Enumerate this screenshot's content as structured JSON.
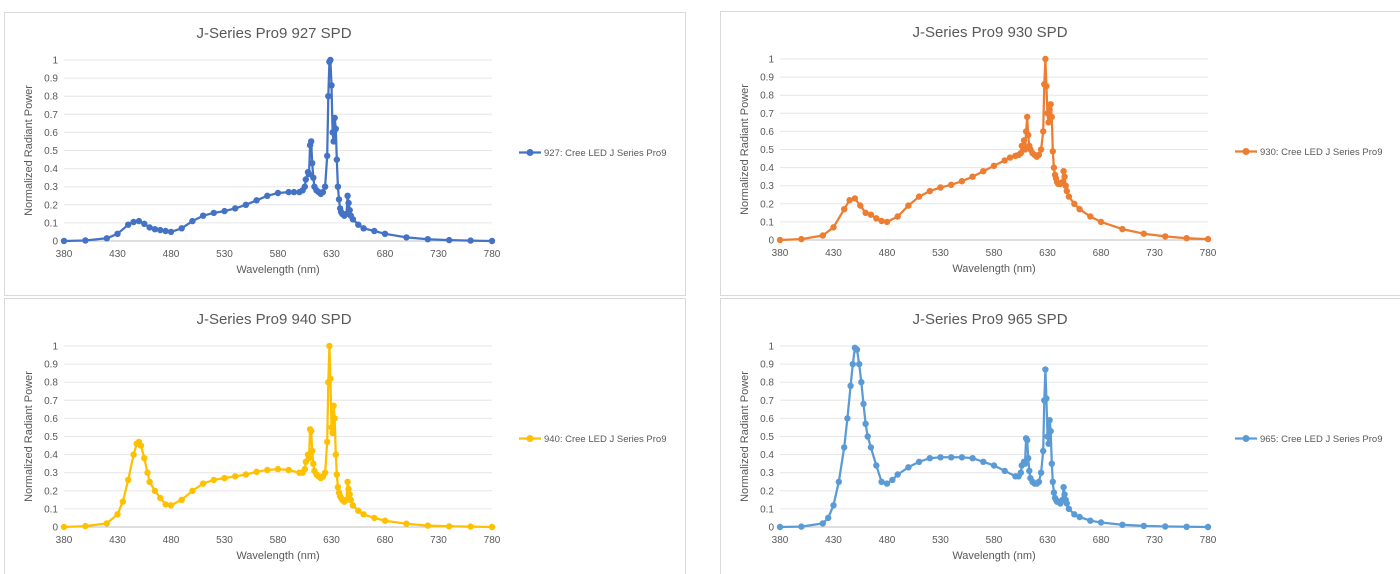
{
  "chart_data": [
    {
      "type": "line",
      "title": "J-Series Pro9 927 SPD",
      "xlabel": "Wavelength (nm)",
      "ylabel": "Normalized Radiant Power",
      "xlim": [
        380,
        780
      ],
      "ylim": [
        0,
        1
      ],
      "xticks": [
        "380",
        "430",
        "480",
        "530",
        "580",
        "630",
        "680",
        "730",
        "780"
      ],
      "yticks": [
        "0",
        "0.1",
        "0.2",
        "0.3",
        "0.4",
        "0.5",
        "0.6",
        "0.7",
        "0.8",
        "0.9",
        "1"
      ],
      "grid": true,
      "legend_position": "right",
      "color": "#4472C4",
      "series": [
        {
          "name": "927: Cree LED J Series Pro9",
          "x": [
            380,
            400,
            420,
            430,
            440,
            445,
            450,
            455,
            460,
            465,
            470,
            475,
            480,
            490,
            500,
            510,
            520,
            530,
            540,
            550,
            560,
            570,
            580,
            590,
            595,
            600,
            603,
            605,
            606,
            608,
            609,
            610,
            611,
            612,
            613,
            614,
            616,
            618,
            620,
            622,
            624,
            626,
            627,
            628,
            629,
            630,
            631,
            632,
            633,
            634,
            635,
            636,
            637,
            638,
            639,
            640,
            642,
            644,
            645,
            646,
            647,
            648,
            650,
            655,
            660,
            670,
            680,
            700,
            720,
            740,
            760,
            780
          ],
          "y": [
            0.0,
            0.003,
            0.015,
            0.04,
            0.09,
            0.105,
            0.11,
            0.095,
            0.075,
            0.065,
            0.06,
            0.055,
            0.05,
            0.07,
            0.11,
            0.14,
            0.155,
            0.165,
            0.18,
            0.2,
            0.225,
            0.25,
            0.265,
            0.27,
            0.27,
            0.27,
            0.28,
            0.3,
            0.34,
            0.38,
            0.37,
            0.53,
            0.55,
            0.43,
            0.35,
            0.3,
            0.28,
            0.27,
            0.26,
            0.27,
            0.3,
            0.47,
            0.8,
            0.99,
            1.0,
            0.86,
            0.6,
            0.55,
            0.68,
            0.62,
            0.45,
            0.3,
            0.23,
            0.18,
            0.16,
            0.15,
            0.14,
            0.15,
            0.25,
            0.21,
            0.17,
            0.14,
            0.12,
            0.09,
            0.07,
            0.055,
            0.04,
            0.02,
            0.01,
            0.005,
            0.002,
            0.0
          ]
        }
      ]
    },
    {
      "type": "line",
      "title": "J-Series Pro9 930 SPD",
      "xlabel": "Wavelength (nm)",
      "ylabel": "Normalized Radiant Power",
      "xlim": [
        380,
        780
      ],
      "ylim": [
        0,
        1
      ],
      "xticks": [
        "380",
        "430",
        "480",
        "530",
        "580",
        "630",
        "680",
        "730",
        "780"
      ],
      "yticks": [
        "0",
        "0.1",
        "0.2",
        "0.3",
        "0.4",
        "0.5",
        "0.6",
        "0.7",
        "0.8",
        "0.9",
        "1"
      ],
      "grid": true,
      "legend_position": "right",
      "color": "#ED7D31",
      "series": [
        {
          "name": "930: Cree LED J Series Pro9",
          "x": [
            380,
            400,
            420,
            430,
            440,
            445,
            450,
            455,
            460,
            465,
            470,
            475,
            480,
            490,
            500,
            510,
            520,
            530,
            540,
            550,
            560,
            570,
            580,
            590,
            595,
            600,
            603,
            605,
            606,
            608,
            609,
            610,
            611,
            612,
            613,
            614,
            616,
            618,
            620,
            622,
            624,
            626,
            627,
            628,
            629,
            630,
            631,
            632,
            633,
            634,
            635,
            636,
            637,
            638,
            639,
            640,
            642,
            644,
            645,
            646,
            647,
            648,
            650,
            655,
            660,
            670,
            680,
            700,
            720,
            740,
            760,
            780
          ],
          "y": [
            0.0,
            0.005,
            0.025,
            0.07,
            0.17,
            0.22,
            0.23,
            0.19,
            0.15,
            0.14,
            0.12,
            0.105,
            0.1,
            0.13,
            0.19,
            0.24,
            0.27,
            0.29,
            0.305,
            0.325,
            0.35,
            0.38,
            0.41,
            0.44,
            0.455,
            0.465,
            0.47,
            0.48,
            0.52,
            0.55,
            0.5,
            0.6,
            0.68,
            0.58,
            0.52,
            0.5,
            0.48,
            0.47,
            0.46,
            0.47,
            0.5,
            0.6,
            0.86,
            1.0,
            0.85,
            0.7,
            0.65,
            0.72,
            0.75,
            0.68,
            0.49,
            0.4,
            0.36,
            0.34,
            0.32,
            0.31,
            0.31,
            0.32,
            0.38,
            0.35,
            0.3,
            0.27,
            0.24,
            0.2,
            0.17,
            0.13,
            0.1,
            0.06,
            0.035,
            0.02,
            0.01,
            0.005
          ]
        }
      ]
    },
    {
      "type": "line",
      "title": "J-Series Pro9 940 SPD",
      "xlabel": "Wavelength (nm)",
      "ylabel": "Normalized Radiant Power",
      "xlim": [
        380,
        780
      ],
      "ylim": [
        0,
        1
      ],
      "xticks": [
        "380",
        "430",
        "480",
        "530",
        "580",
        "630",
        "680",
        "730",
        "780"
      ],
      "yticks": [
        "0",
        "0.1",
        "0.2",
        "0.3",
        "0.4",
        "0.5",
        "0.6",
        "0.7",
        "0.8",
        "0.9",
        "1"
      ],
      "grid": true,
      "legend_position": "right",
      "color": "#FFC000",
      "series": [
        {
          "name": "940: Cree LED J Series Pro9",
          "x": [
            380,
            400,
            420,
            430,
            435,
            440,
            445,
            448,
            450,
            452,
            455,
            458,
            460,
            465,
            470,
            475,
            480,
            490,
            500,
            510,
            520,
            530,
            540,
            550,
            560,
            570,
            580,
            590,
            600,
            603,
            605,
            606,
            608,
            609,
            610,
            611,
            612,
            613,
            614,
            616,
            618,
            620,
            622,
            624,
            626,
            627,
            628,
            629,
            630,
            631,
            632,
            633,
            634,
            635,
            636,
            637,
            638,
            639,
            640,
            642,
            644,
            645,
            646,
            647,
            648,
            650,
            655,
            660,
            670,
            680,
            700,
            720,
            740,
            760,
            780
          ],
          "y": [
            0.0,
            0.005,
            0.02,
            0.07,
            0.14,
            0.26,
            0.4,
            0.46,
            0.47,
            0.45,
            0.38,
            0.3,
            0.25,
            0.2,
            0.16,
            0.125,
            0.12,
            0.15,
            0.2,
            0.24,
            0.26,
            0.27,
            0.28,
            0.29,
            0.305,
            0.315,
            0.32,
            0.315,
            0.3,
            0.3,
            0.32,
            0.36,
            0.4,
            0.38,
            0.54,
            0.53,
            0.42,
            0.35,
            0.31,
            0.29,
            0.28,
            0.27,
            0.28,
            0.3,
            0.47,
            0.8,
            1.0,
            0.82,
            0.55,
            0.52,
            0.67,
            0.6,
            0.4,
            0.29,
            0.22,
            0.19,
            0.17,
            0.16,
            0.15,
            0.14,
            0.15,
            0.25,
            0.21,
            0.18,
            0.15,
            0.12,
            0.09,
            0.07,
            0.05,
            0.035,
            0.018,
            0.008,
            0.004,
            0.002,
            0.0
          ]
        }
      ]
    },
    {
      "type": "line",
      "title": "J-Series Pro9 965 SPD",
      "xlabel": "Wavelength (nm)",
      "ylabel": "Normalized Radiant Power",
      "xlim": [
        380,
        780
      ],
      "ylim": [
        0,
        1
      ],
      "xticks": [
        "380",
        "430",
        "480",
        "530",
        "580",
        "630",
        "680",
        "730",
        "780"
      ],
      "yticks": [
        "0",
        "0.1",
        "0.2",
        "0.3",
        "0.4",
        "0.5",
        "0.6",
        "0.7",
        "0.8",
        "0.9",
        "1"
      ],
      "grid": true,
      "legend_position": "right",
      "color": "#5B9BD5",
      "series": [
        {
          "name": "965: Cree LED J Series Pro9",
          "x": [
            380,
            400,
            420,
            425,
            430,
            435,
            440,
            443,
            446,
            448,
            450,
            452,
            454,
            456,
            458,
            460,
            462,
            465,
            470,
            475,
            480,
            485,
            490,
            500,
            510,
            520,
            530,
            540,
            550,
            560,
            570,
            580,
            590,
            600,
            603,
            605,
            606,
            608,
            609,
            610,
            611,
            612,
            613,
            614,
            616,
            618,
            620,
            622,
            624,
            626,
            627,
            628,
            629,
            630,
            631,
            632,
            633,
            634,
            635,
            636,
            637,
            638,
            639,
            640,
            642,
            644,
            645,
            646,
            647,
            648,
            650,
            655,
            660,
            670,
            680,
            700,
            720,
            740,
            760,
            780
          ],
          "y": [
            0.0,
            0.002,
            0.02,
            0.05,
            0.12,
            0.25,
            0.44,
            0.6,
            0.78,
            0.9,
            0.99,
            0.98,
            0.9,
            0.8,
            0.68,
            0.57,
            0.5,
            0.44,
            0.34,
            0.25,
            0.24,
            0.26,
            0.29,
            0.33,
            0.36,
            0.38,
            0.385,
            0.385,
            0.385,
            0.38,
            0.36,
            0.34,
            0.31,
            0.28,
            0.28,
            0.3,
            0.34,
            0.36,
            0.35,
            0.49,
            0.48,
            0.38,
            0.31,
            0.27,
            0.25,
            0.24,
            0.24,
            0.25,
            0.3,
            0.42,
            0.7,
            0.87,
            0.71,
            0.5,
            0.46,
            0.59,
            0.53,
            0.35,
            0.25,
            0.19,
            0.16,
            0.15,
            0.14,
            0.14,
            0.13,
            0.15,
            0.22,
            0.18,
            0.15,
            0.13,
            0.1,
            0.07,
            0.055,
            0.035,
            0.025,
            0.012,
            0.006,
            0.003,
            0.001,
            0.0
          ]
        }
      ]
    }
  ]
}
